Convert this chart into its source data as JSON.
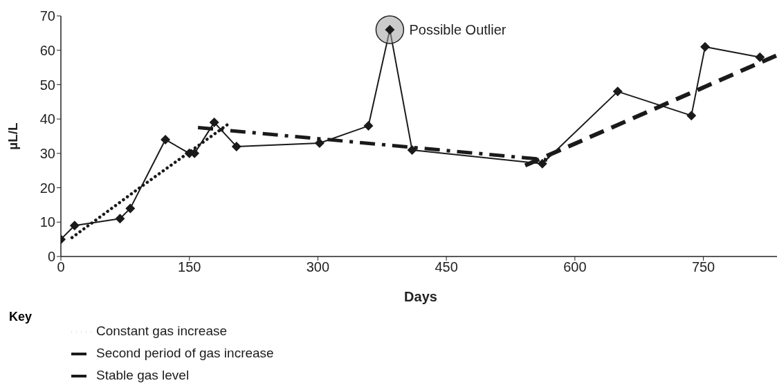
{
  "chart_data": {
    "type": "line",
    "xlabel": "Days",
    "ylabel": "µL/L",
    "legend_title": "Key",
    "legend": "bottom left",
    "xlim": [
      0,
      840
    ],
    "xticks": [
      0,
      150,
      300,
      450,
      600,
      750
    ],
    "ylim": [
      0,
      70
    ],
    "yticks": [
      0,
      10,
      20,
      30,
      40,
      50,
      60,
      70
    ],
    "series": [
      {
        "color": "#1a1a1a",
        "marker": "diamond",
        "line_style": "solid",
        "x": [
          0,
          16,
          69,
          81,
          122,
          150,
          156,
          179,
          205,
          302,
          359,
          384,
          410,
          562,
          650,
          736,
          752,
          816
        ],
        "values": [
          5,
          9,
          11,
          14,
          34,
          30,
          30,
          39,
          32,
          33,
          38,
          66,
          31,
          27,
          48,
          41,
          61,
          58
        ]
      },
      {
        "name": "Constant gas increase",
        "color": "#1a1a1a",
        "marker": "none",
        "line_style": "dotted",
        "x": [
          13,
          92,
          198
        ],
        "values": [
          5.5,
          20,
          39
        ]
      },
      {
        "name": "Stable gas level",
        "color": "#1a1a1a",
        "marker": "none",
        "line_style": "dashdot",
        "x": [
          160,
          573
        ],
        "values": [
          37.5,
          28
        ]
      },
      {
        "name": "Second period of gas increase",
        "color": "#1a1a1a",
        "marker": "none",
        "line_style": "dashed",
        "x": [
          542,
          840
        ],
        "values": [
          26.5,
          59
        ]
      }
    ],
    "annotations": [
      {
        "text": "Possible Outlier",
        "x": 384,
        "y": 66
      }
    ]
  }
}
